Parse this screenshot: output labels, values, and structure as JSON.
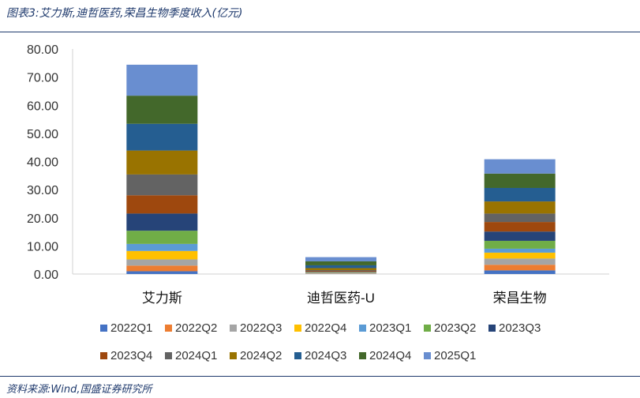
{
  "caption": "图表3:艾力斯,迪哲医药,荣昌生物季度收入(亿元)",
  "source": "资料来源:Wind,国盛证券研究所",
  "chart_data": {
    "type": "bar",
    "stacked": true,
    "categories": [
      "艾力斯",
      "迪哲医药-U",
      "荣昌生物"
    ],
    "ylim": [
      0,
      80
    ],
    "yticks": [
      "0.00",
      "10.00",
      "20.00",
      "30.00",
      "40.00",
      "50.00",
      "60.00",
      "70.00",
      "80.00"
    ],
    "ytick_values": [
      0,
      10,
      20,
      30,
      40,
      50,
      60,
      70,
      80
    ],
    "legend_position": "bottom",
    "grid": false,
    "series": [
      {
        "name": "2022Q1",
        "color": "#4472C4",
        "values": [
          1.0,
          0.1,
          1.3
        ]
      },
      {
        "name": "2022Q2",
        "color": "#ED7D31",
        "values": [
          2.0,
          0.1,
          2.0
        ]
      },
      {
        "name": "2022Q3",
        "color": "#A5A5A5",
        "values": [
          2.2,
          0.1,
          2.2
        ]
      },
      {
        "name": "2022Q4",
        "color": "#FFC000",
        "values": [
          3.0,
          0.1,
          2.1
        ]
      },
      {
        "name": "2023Q1",
        "color": "#5B9BD5",
        "values": [
          2.5,
          0.1,
          1.4
        ]
      },
      {
        "name": "2023Q2",
        "color": "#70AD47",
        "values": [
          4.7,
          0.1,
          2.8
        ]
      },
      {
        "name": "2023Q3",
        "color": "#264478",
        "values": [
          6.1,
          0.2,
          3.3
        ]
      },
      {
        "name": "2023Q4",
        "color": "#9E480E",
        "values": [
          6.5,
          0.3,
          3.4
        ]
      },
      {
        "name": "2024Q1",
        "color": "#636363",
        "values": [
          7.4,
          0.3,
          3.0
        ]
      },
      {
        "name": "2024Q2",
        "color": "#997300",
        "values": [
          8.5,
          0.7,
          4.3
        ]
      },
      {
        "name": "2024Q3",
        "color": "#255E91",
        "values": [
          9.5,
          1.0,
          4.8
        ]
      },
      {
        "name": "2024Q4",
        "color": "#43682B",
        "values": [
          10.0,
          1.4,
          5.1
        ]
      },
      {
        "name": "2025Q1",
        "color": "#698ED0",
        "values": [
          11.0,
          1.5,
          5.1
        ]
      }
    ]
  }
}
